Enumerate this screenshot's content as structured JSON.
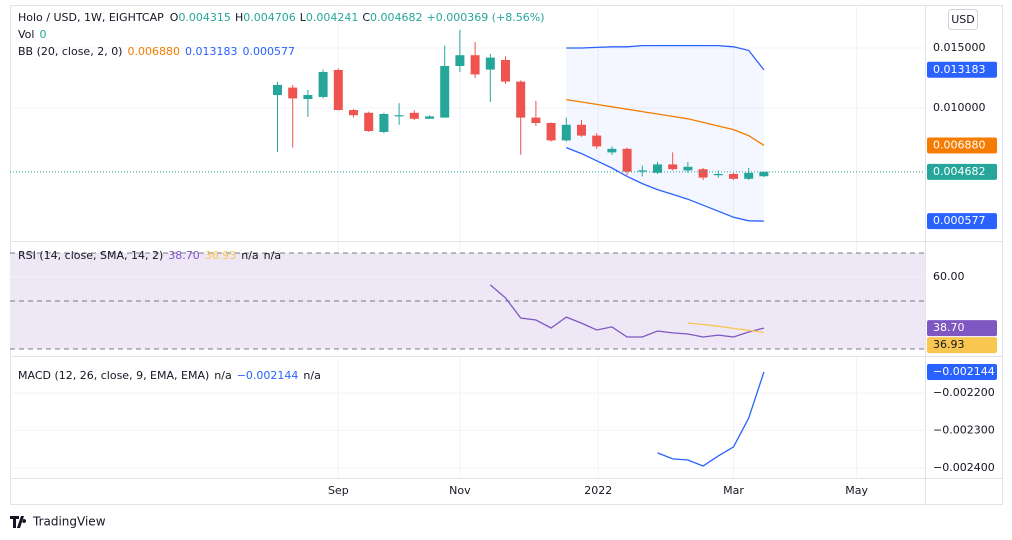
{
  "chart_data": [
    {
      "type": "candlestick",
      "title": "Holo / USD, 1W, EIGHTCAP",
      "field_letters": [
        "O",
        "H",
        "L",
        "C"
      ],
      "ohlc_labels": [
        "0.004315",
        "0.004706",
        "0.004241",
        "0.004682"
      ],
      "change_label": "+0.000369 (+8.56%)",
      "vol_label": "Vol",
      "vol_value": "0",
      "indicator": "BB (20, close, 2, 0)",
      "currency": "USD",
      "categories": [
        null,
        null,
        null,
        null,
        null,
        null,
        null,
        null,
        null,
        null,
        null,
        null,
        null,
        null,
        null,
        null,
        null,
        null,
        null,
        null,
        null,
        null,
        null,
        null,
        null,
        null,
        null,
        null,
        null,
        null,
        null,
        null,
        null
      ],
      "open": [
        0.01108,
        0.0117,
        0.01075,
        0.01092,
        0.01317,
        0.00983,
        0.0096,
        0.008,
        0.0093,
        0.0096,
        0.0091,
        0.0092,
        0.0135,
        0.0144,
        0.0132,
        0.014,
        0.0122,
        0.0092,
        0.00875,
        0.0073,
        0.0086,
        0.0077,
        0.0063,
        0.0066,
        0.0047,
        0.0046,
        0.0053,
        0.0048,
        0.0049,
        0.0044,
        0.0045,
        0.0041,
        0.004315
      ],
      "high": [
        0.01217,
        0.0119,
        0.0115,
        0.0132,
        0.0133,
        0.0099,
        0.0097,
        0.0096,
        0.0104,
        0.0098,
        0.0094,
        0.0152,
        0.0165,
        0.0155,
        0.0145,
        0.0143,
        0.0123,
        0.0106,
        0.0088,
        0.0092,
        0.009,
        0.0079,
        0.0068,
        0.0067,
        0.0052,
        0.0055,
        0.0063,
        0.0055,
        0.005,
        0.0048,
        0.0046,
        0.005,
        0.004706
      ],
      "low": [
        0.00633,
        0.0067,
        0.00925,
        0.0108,
        0.0098,
        0.0092,
        0.008,
        0.0079,
        0.0086,
        0.009,
        0.0091,
        0.0092,
        0.013,
        0.0125,
        0.0105,
        0.012,
        0.0061,
        0.0085,
        0.0072,
        0.0072,
        0.0076,
        0.0066,
        0.0061,
        0.0044,
        0.0043,
        0.0045,
        0.0048,
        0.0046,
        0.004,
        0.0042,
        0.004,
        0.004,
        0.004241
      ],
      "close": [
        0.01192,
        0.0108,
        0.01108,
        0.013,
        0.00983,
        0.0094,
        0.00808,
        0.0095,
        0.0094,
        0.0091,
        0.0093,
        0.0135,
        0.0144,
        0.0128,
        0.0142,
        0.0122,
        0.0092,
        0.00875,
        0.0073,
        0.0086,
        0.0077,
        0.0068,
        0.0066,
        0.0047,
        0.0048,
        0.0053,
        0.0049,
        0.0051,
        0.0042,
        0.0045,
        0.0041,
        0.0046,
        0.004682
      ],
      "up_color": "#26a69a",
      "down_color": "#ef5350",
      "series": [
        {
          "color": "#2962ff",
          "last_label": "0.013183",
          "values": [
            null,
            null,
            null,
            null,
            null,
            null,
            null,
            null,
            null,
            null,
            null,
            null,
            null,
            null,
            null,
            null,
            null,
            null,
            null,
            0.015,
            0.015,
            0.01505,
            0.0151,
            0.0151,
            0.0152,
            0.0152,
            0.0152,
            0.0152,
            0.0152,
            0.0152,
            0.0151,
            0.0148,
            0.013183
          ]
        },
        {
          "color": "#f57c00",
          "last_label": "0.006880",
          "values": [
            null,
            null,
            null,
            null,
            null,
            null,
            null,
            null,
            null,
            null,
            null,
            null,
            null,
            null,
            null,
            null,
            null,
            null,
            null,
            0.0107,
            0.0105,
            0.0103,
            0.0101,
            0.0099,
            0.0097,
            0.0095,
            0.0093,
            0.0091,
            0.0088,
            0.0085,
            0.0082,
            0.0077,
            0.00688
          ]
        },
        {
          "color": "#2962ff",
          "last_label": "0.000577",
          "values": [
            null,
            null,
            null,
            null,
            null,
            null,
            null,
            null,
            null,
            null,
            null,
            null,
            null,
            null,
            null,
            null,
            null,
            null,
            null,
            0.0067,
            0.0062,
            0.0056,
            0.005,
            0.0043,
            0.0037,
            0.0032,
            0.0028,
            0.0024,
            0.0019,
            0.0014,
            0.0009,
            0.0006,
            0.000577
          ]
        }
      ],
      "ylim": [
        -0.001083,
        0.018583
      ],
      "yticks": [
        {
          "value": 0.015,
          "label": "0.015000"
        },
        {
          "value": 0.01,
          "label": "0.010000"
        }
      ],
      "xlim": [
        -17.6,
        42.6
      ],
      "xticks": [
        {
          "value": 4,
          "label": "Sep"
        },
        {
          "value": 12,
          "label": "Nov"
        },
        {
          "value": 21.1,
          "label": "2022"
        },
        {
          "value": 30,
          "label": "Mar"
        },
        {
          "value": 38.1,
          "label": "May"
        }
      ]
    },
    {
      "type": "line",
      "title": "RSI (14, close, SMA, 14, 2)",
      "na_labels": [
        "n/a",
        "n/a"
      ],
      "series": [
        {
          "color": "#7e57c2",
          "last_label": "38.70",
          "values": [
            null,
            null,
            null,
            null,
            null,
            null,
            null,
            null,
            null,
            null,
            null,
            null,
            null,
            null,
            56.7,
            51.3,
            42.9,
            42.1,
            38.75,
            43.3,
            40.8,
            37.9,
            39.2,
            35,
            35,
            37.5,
            36.7,
            36.25,
            35,
            35.8,
            35,
            37.1,
            38.7
          ]
        },
        {
          "color": "#f9c74f",
          "last_label": "36.93",
          "values": [
            null,
            null,
            null,
            null,
            null,
            null,
            null,
            null,
            null,
            null,
            null,
            null,
            null,
            null,
            null,
            null,
            null,
            null,
            null,
            null,
            null,
            null,
            null,
            null,
            null,
            null,
            null,
            40.8,
            40.2,
            39.5,
            38.6,
            37.8,
            36.93
          ]
        }
      ],
      "ylim": [
        28.75,
        74.58
      ],
      "yticks": [
        {
          "value": 60,
          "label": "60.00"
        }
      ],
      "levels": [
        70,
        50,
        30
      ],
      "band_color": "#ede7f6"
    },
    {
      "type": "line",
      "title": "MACD (12, 26, close, 9, EMA, EMA)",
      "na_labels": [
        "n/a",
        "n/a"
      ],
      "series": [
        {
          "color": "#2962ff",
          "last_label": "−0.002144",
          "values": [
            null,
            null,
            null,
            null,
            null,
            null,
            null,
            null,
            null,
            null,
            null,
            null,
            null,
            null,
            null,
            null,
            null,
            null,
            null,
            null,
            null,
            null,
            null,
            null,
            null,
            -0.00236,
            -0.002376,
            -0.002379,
            -0.002395,
            -0.002368,
            -0.002344,
            -0.002267,
            -0.002144
          ]
        }
      ],
      "ylim": [
        -0.002427,
        -0.002104
      ],
      "yticks": [
        {
          "value": -0.0022,
          "label": "−0.002200"
        },
        {
          "value": -0.0023,
          "label": "−0.002300"
        },
        {
          "value": -0.0024,
          "label": "−0.002400"
        }
      ]
    }
  ],
  "brand": "TradingView"
}
